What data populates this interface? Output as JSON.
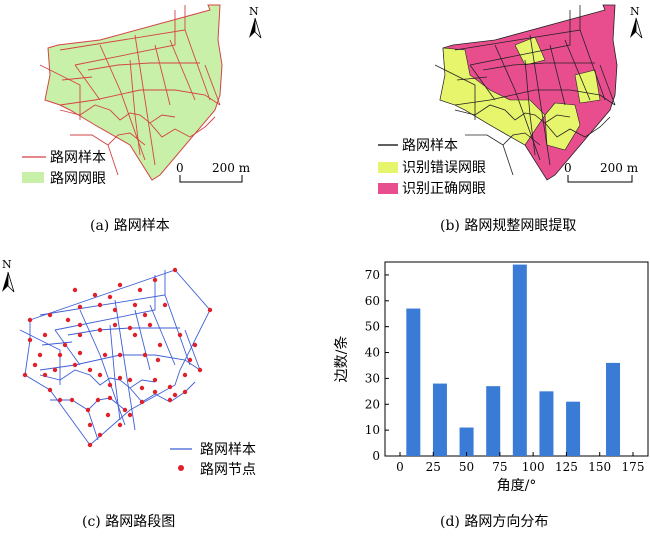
{
  "panels": {
    "a": {
      "caption": "(a) 路网样本",
      "legend": [
        "路网样本",
        "路网网眼"
      ],
      "scale_zero": "0",
      "scale_label": "200 m",
      "north": "N"
    },
    "b": {
      "caption": "(b) 路网规整网眼提取",
      "legend": [
        "路网样本",
        "识别错误网眼",
        "识别正确网眼"
      ],
      "scale_zero": "0",
      "scale_label": "200 m",
      "north": "N"
    },
    "c": {
      "caption": "(c) 路网路段图",
      "legend": [
        "路网样本",
        "路网节点"
      ],
      "north": "N"
    },
    "d": {
      "caption": "(d) 路网方向分布"
    }
  },
  "colors": {
    "road_red": "#d34545",
    "mesh_green": "#c8f0a8",
    "mesh_yellow": "#e6f56b",
    "mesh_pink": "#e84e8e",
    "road_blue": "#3d5fd6",
    "node_red": "#e0202a",
    "bar_blue": "#3a7bd5"
  },
  "chart_data": {
    "type": "bar",
    "x": [
      10,
      30,
      50,
      70,
      90,
      110,
      130,
      160
    ],
    "values": [
      57,
      28,
      11,
      27,
      74,
      25,
      21,
      36
    ],
    "xlabel": "角度/°",
    "ylabel": "边数/条",
    "xlim": [
      0,
      180
    ],
    "ylim": [
      0,
      75
    ],
    "xticks": [
      0,
      25,
      50,
      75,
      100,
      125,
      150,
      175
    ],
    "yticks": [
      0,
      10,
      20,
      30,
      40,
      50,
      60,
      70
    ],
    "grid": false
  }
}
